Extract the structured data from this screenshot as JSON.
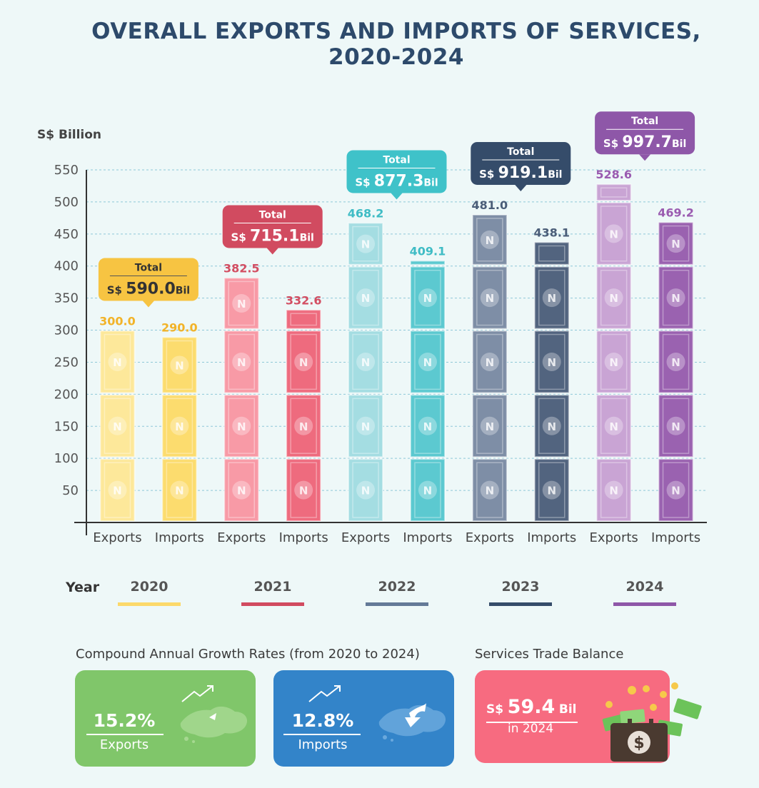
{
  "title_line1": "OVERALL EXPORTS AND IMPORTS OF SERVICES,",
  "title_line2": "2020-2024",
  "chart_data": {
    "type": "bar",
    "ylabel": "S$ Billion",
    "ylim": [
      0,
      550
    ],
    "yticks": [
      50,
      100,
      150,
      200,
      250,
      300,
      350,
      400,
      450,
      500,
      550
    ],
    "grid": true,
    "categories": [
      "Exports",
      "Imports",
      "Exports",
      "Imports",
      "Exports",
      "Imports",
      "Exports",
      "Imports",
      "Exports",
      "Imports"
    ],
    "years": [
      {
        "year": "2020",
        "exports": 300.0,
        "imports": 290.0,
        "exports_label": "300.0",
        "imports_label": "290.0",
        "total_label": "Total",
        "total_currency": "S$",
        "total_value": "590.0",
        "total_unit": "Bil",
        "export_color": "#fde89a",
        "import_color": "#fcdc6e",
        "accent": "#f7c442",
        "label_color": "#f2b328"
      },
      {
        "year": "2021",
        "exports": 382.5,
        "imports": 332.6,
        "exports_label": "382.5",
        "imports_label": "332.6",
        "total_label": "Total",
        "total_currency": "S$",
        "total_value": "715.1",
        "total_unit": "Bil",
        "export_color": "#f89aa6",
        "import_color": "#ee6b7e",
        "accent": "#d14b60",
        "label_color": "#d34e62"
      },
      {
        "year": "2022",
        "exports": 468.2,
        "imports": 409.1,
        "exports_label": "468.2",
        "imports_label": "409.1",
        "total_label": "Total",
        "total_currency": "S$",
        "total_value": "877.3",
        "total_unit": "Bil",
        "export_color": "#a4dde2",
        "import_color": "#5cc9d0",
        "accent": "#3fc2c9",
        "label_color": "#3fbcc5"
      },
      {
        "year": "2023",
        "exports": 481.0,
        "imports": 438.1,
        "exports_label": "481.0",
        "imports_label": "438.1",
        "total_label": "Total",
        "total_currency": "S$",
        "total_value": "919.1",
        "total_unit": "Bil",
        "export_color": "#7e8ea6",
        "import_color": "#52647f",
        "accent": "#354c6a",
        "label_color": "#4a5d78"
      },
      {
        "year": "2024",
        "exports": 528.6,
        "imports": 469.2,
        "exports_label": "528.6",
        "imports_label": "469.2",
        "total_label": "Total",
        "total_currency": "S$",
        "total_value": "997.7",
        "total_unit": "Bil",
        "export_color": "#c9a4d4",
        "import_color": "#9a62b0",
        "accent": "#8e57a8",
        "label_color": "#9a5bb0"
      }
    ]
  },
  "legend": {
    "title": "Year",
    "items": [
      {
        "year": "2020",
        "color": "#fcd96a"
      },
      {
        "year": "2021",
        "color": "#d14b60"
      },
      {
        "year": "2022",
        "color": "#647a98"
      },
      {
        "year": "2023",
        "color": "#354c6a"
      },
      {
        "year": "2024",
        "color": "#8e57a8"
      }
    ]
  },
  "cagr": {
    "title": "Compound Annual Growth Rates (from 2020 to 2024)",
    "exports": {
      "value": "15.2%",
      "label": "Exports",
      "color": "#80c66a"
    },
    "imports": {
      "value": "12.8%",
      "label": "Imports",
      "color": "#3384c9"
    }
  },
  "balance": {
    "title": "Services Trade Balance",
    "currency": "S$",
    "value": "59.4",
    "unit": "Bil",
    "period": "in 2024",
    "color": "#f76b80"
  }
}
